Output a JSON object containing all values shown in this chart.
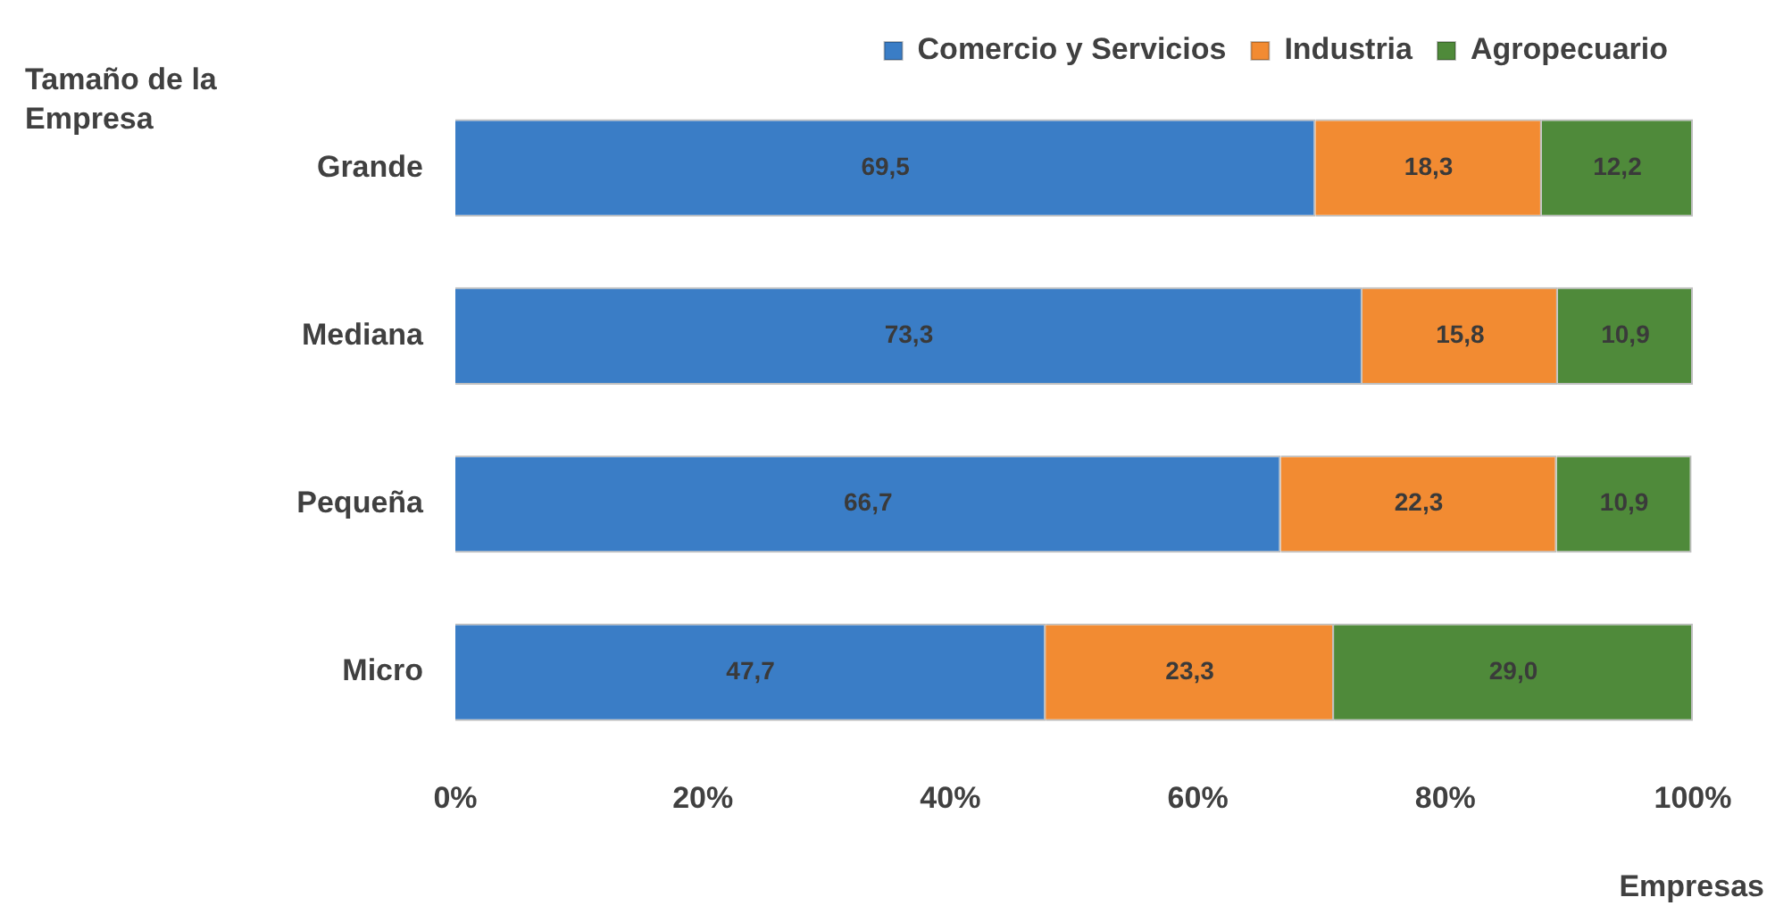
{
  "chart_data": {
    "type": "bar",
    "orientation": "horizontal",
    "stacked": true,
    "ylabel": "Tamaño de la Empresa",
    "xlabel": "Empresas",
    "categories": [
      "Grande",
      "Mediana",
      "Pequeña",
      "Micro"
    ],
    "series": [
      {
        "name": "Comercio y Servicios",
        "color": "#3a7dc6",
        "values": [
          69.5,
          73.3,
          66.7,
          47.7
        ],
        "value_labels": [
          "69,5",
          "73,3",
          "66,7",
          "47,7"
        ]
      },
      {
        "name": "Industria",
        "color": "#f28b32",
        "values": [
          18.3,
          15.8,
          22.3,
          23.3
        ],
        "value_labels": [
          "18,3",
          "15,8",
          "22,3",
          "23,3"
        ]
      },
      {
        "name": "Agropecuario",
        "color": "#4f8a3a",
        "values": [
          12.2,
          10.9,
          10.9,
          29.0
        ],
        "value_labels": [
          "12,2",
          "10,9",
          "10,9",
          "29,0"
        ]
      }
    ],
    "xlim": [
      0,
      100
    ],
    "xticks": [
      {
        "value": 0,
        "label": "0%"
      },
      {
        "value": 20,
        "label": "20%"
      },
      {
        "value": 40,
        "label": "40%"
      },
      {
        "value": 60,
        "label": "60%"
      },
      {
        "value": 80,
        "label": "80%"
      },
      {
        "value": 100,
        "label": "100%"
      }
    ],
    "grid": false,
    "legend": "top"
  }
}
